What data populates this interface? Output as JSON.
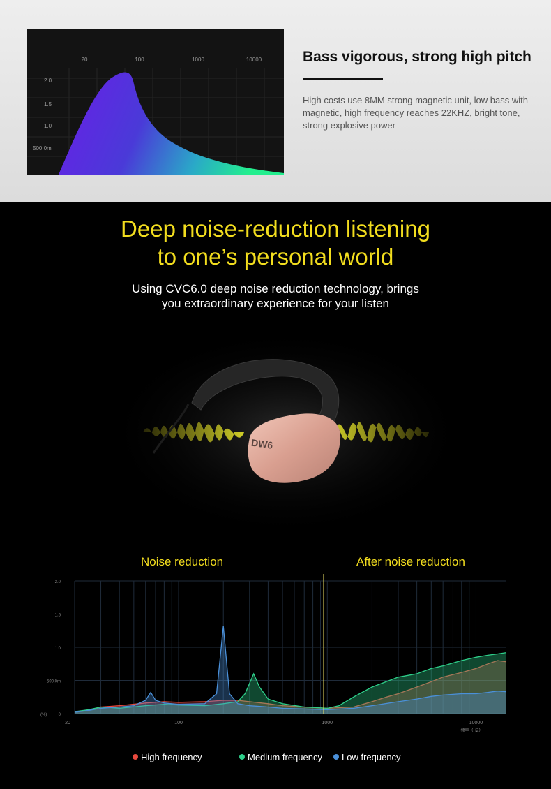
{
  "top": {
    "heading": "Bass vigorous, strong high pitch",
    "description": "High costs use 8MM strong magnetic unit, low bass with magnetic, high frequency reaches 22KHZ, bright tone, strong explosive power",
    "graph": {
      "x_ticks": [
        "20",
        "100",
        "1000",
        "10000"
      ],
      "y_ticks": [
        "2.0",
        "1.5",
        "1.0",
        "500.0m"
      ]
    }
  },
  "main": {
    "title_line1": "Deep noise-reduction  listening",
    "title_line2": "to one’s personal world",
    "subtitle_line1": "Using CVC6.0 deep noise reduction technology, brings",
    "subtitle_line2": "you extraordinary experience for your listen",
    "product_logo": "DW6"
  },
  "chart_data": {
    "type": "area",
    "x_scale": "log",
    "xlim": [
      20,
      16000
    ],
    "ylim": [
      0,
      2.0
    ],
    "y_ticks": [
      "2.0",
      "1.5",
      "1.0",
      "500.0m",
      "0"
    ],
    "y_unit": "(%)",
    "x_ticks": [
      "20",
      "100",
      "1000",
      "10000"
    ],
    "x_unit": "频率（HZ）",
    "region_labels": [
      "Noise reduction",
      "After noise reduction"
    ],
    "divider_x": 1000,
    "series": [
      {
        "name": "High frequency",
        "color": "#e8493e",
        "points": [
          [
            20,
            0.02
          ],
          [
            25,
            0.05
          ],
          [
            30,
            0.1
          ],
          [
            40,
            0.12
          ],
          [
            60,
            0.16
          ],
          [
            80,
            0.18
          ],
          [
            100,
            0.17
          ],
          [
            150,
            0.18
          ],
          [
            200,
            0.2
          ],
          [
            250,
            0.2
          ],
          [
            300,
            0.18
          ],
          [
            400,
            0.15
          ],
          [
            500,
            0.12
          ],
          [
            700,
            0.1
          ],
          [
            1000,
            0.08
          ],
          [
            1500,
            0.1
          ],
          [
            2000,
            0.18
          ],
          [
            2500,
            0.25
          ],
          [
            3000,
            0.3
          ],
          [
            4000,
            0.4
          ],
          [
            5000,
            0.48
          ],
          [
            6000,
            0.55
          ],
          [
            8000,
            0.62
          ],
          [
            10000,
            0.68
          ],
          [
            12000,
            0.75
          ],
          [
            14000,
            0.8
          ],
          [
            16000,
            0.78
          ]
        ]
      },
      {
        "name": "Medium frequency",
        "color": "#2ecf8a",
        "points": [
          [
            20,
            0.03
          ],
          [
            25,
            0.06
          ],
          [
            30,
            0.1
          ],
          [
            40,
            0.08
          ],
          [
            60,
            0.12
          ],
          [
            80,
            0.14
          ],
          [
            100,
            0.13
          ],
          [
            150,
            0.12
          ],
          [
            200,
            0.15
          ],
          [
            250,
            0.18
          ],
          [
            280,
            0.3
          ],
          [
            320,
            0.6
          ],
          [
            350,
            0.4
          ],
          [
            400,
            0.22
          ],
          [
            500,
            0.15
          ],
          [
            700,
            0.1
          ],
          [
            1000,
            0.08
          ],
          [
            1200,
            0.12
          ],
          [
            1500,
            0.25
          ],
          [
            2000,
            0.4
          ],
          [
            3000,
            0.55
          ],
          [
            4000,
            0.6
          ],
          [
            5000,
            0.68
          ],
          [
            6000,
            0.72
          ],
          [
            8000,
            0.8
          ],
          [
            10000,
            0.85
          ],
          [
            12000,
            0.88
          ],
          [
            14000,
            0.9
          ],
          [
            16000,
            0.92
          ]
        ]
      },
      {
        "name": "Low frequency",
        "color": "#4a90d9",
        "points": [
          [
            20,
            0.02
          ],
          [
            25,
            0.05
          ],
          [
            30,
            0.08
          ],
          [
            40,
            0.1
          ],
          [
            50,
            0.12
          ],
          [
            60,
            0.2
          ],
          [
            65,
            0.32
          ],
          [
            70,
            0.2
          ],
          [
            80,
            0.16
          ],
          [
            100,
            0.14
          ],
          [
            150,
            0.15
          ],
          [
            180,
            0.3
          ],
          [
            200,
            1.32
          ],
          [
            220,
            0.3
          ],
          [
            250,
            0.15
          ],
          [
            300,
            0.12
          ],
          [
            400,
            0.1
          ],
          [
            500,
            0.08
          ],
          [
            700,
            0.07
          ],
          [
            1000,
            0.06
          ],
          [
            1500,
            0.08
          ],
          [
            2000,
            0.12
          ],
          [
            3000,
            0.18
          ],
          [
            4000,
            0.22
          ],
          [
            5000,
            0.26
          ],
          [
            6000,
            0.28
          ],
          [
            8000,
            0.3
          ],
          [
            10000,
            0.3
          ],
          [
            12000,
            0.32
          ],
          [
            14000,
            0.34
          ],
          [
            16000,
            0.33
          ]
        ]
      }
    ],
    "legend_position": "bottom"
  },
  "colors": {
    "title_yellow": "#f2dd1e",
    "earhook": "#2b2b2b",
    "earcup": "#e7b3a4"
  }
}
